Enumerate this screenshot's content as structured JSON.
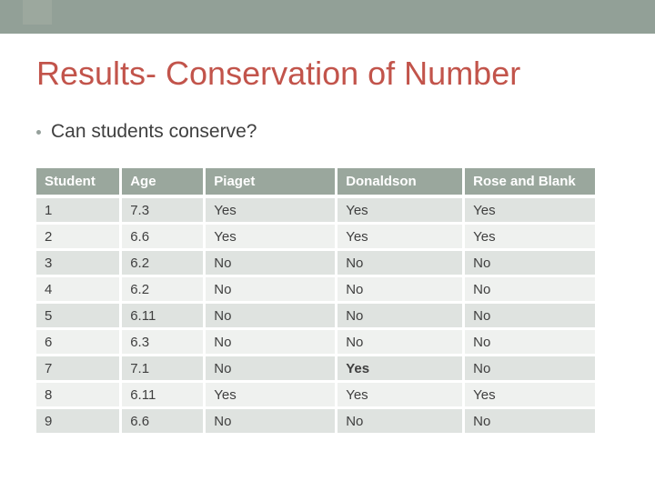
{
  "slide": {
    "title": "Results- Conservation of Number",
    "bullet": "Can students conserve?"
  },
  "table": {
    "headers": [
      "Student",
      "Age",
      "Piaget",
      "Donaldson",
      "Rose and Blank"
    ],
    "rows": [
      {
        "cells": [
          "1",
          "7.3",
          "Yes",
          "Yes",
          "Yes"
        ],
        "bold_cols": []
      },
      {
        "cells": [
          "2",
          "6.6",
          "Yes",
          "Yes",
          "Yes"
        ],
        "bold_cols": []
      },
      {
        "cells": [
          "3",
          "6.2",
          "No",
          "No",
          "No"
        ],
        "bold_cols": []
      },
      {
        "cells": [
          "4",
          "6.2",
          "No",
          "No",
          "No"
        ],
        "bold_cols": []
      },
      {
        "cells": [
          "5",
          "6.11",
          "No",
          "No",
          "No"
        ],
        "bold_cols": []
      },
      {
        "cells": [
          "6",
          "6.3",
          "No",
          "No",
          "No"
        ],
        "bold_cols": []
      },
      {
        "cells": [
          "7",
          "7.1",
          "No",
          "Yes",
          "No"
        ],
        "bold_cols": [
          3
        ]
      },
      {
        "cells": [
          "8",
          "6.11",
          "Yes",
          "Yes",
          "Yes"
        ],
        "bold_cols": []
      },
      {
        "cells": [
          "9",
          "6.6",
          "No",
          "No",
          "No"
        ],
        "bold_cols": []
      }
    ]
  },
  "colors": {
    "accent_bar": "#92A097",
    "accent_bar_square": "#9CA89E",
    "header_bg": "#9AA79D",
    "header_text": "#FFFFFF",
    "row_odd_bg": "#DFE3E0",
    "row_even_bg": "#EFF1EF",
    "title_color": "#C2544B",
    "body_text": "#3F3F3F"
  }
}
